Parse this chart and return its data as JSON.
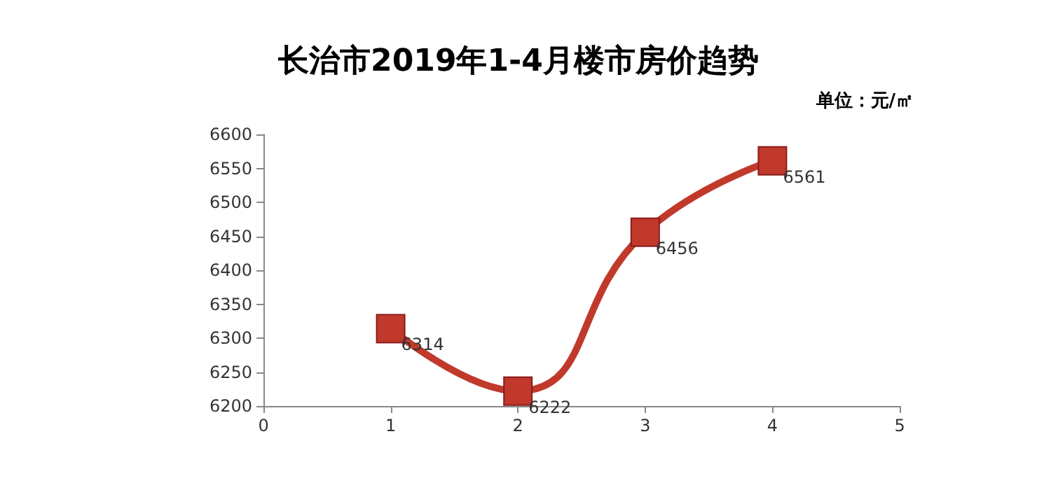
{
  "chart_data": {
    "type": "line",
    "title": "长治市2019年1-4月楼市房价趋势",
    "annotations": [
      "单位：元/㎡"
    ],
    "x": [
      1,
      2,
      3,
      4
    ],
    "series": [
      {
        "color": "#c0392b",
        "values": [
          6314,
          6222,
          6456,
          6561
        ]
      }
    ],
    "xlim": [
      0,
      5
    ],
    "xticks": [
      0,
      1,
      2,
      3,
      4,
      5
    ],
    "ylim": [
      6200,
      6600
    ],
    "yticks": [
      6200,
      6250,
      6300,
      6350,
      6400,
      6450,
      6500,
      6550,
      6600
    ],
    "grid": false,
    "marker": "square",
    "line_style": "solid",
    "data_labels": true
  }
}
